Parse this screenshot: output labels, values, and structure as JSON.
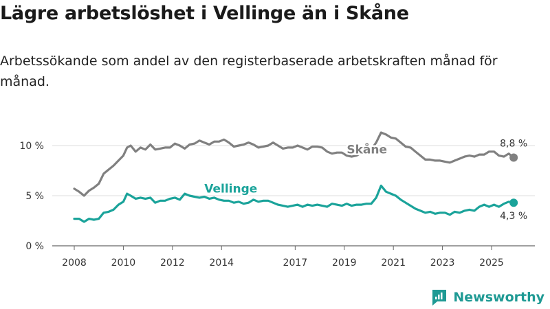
{
  "header": {
    "title": "Lägre arbetslöshet i Vellinge än i Skåne",
    "subtitle": "Arbetssökande som andel av den registerbaserade arbetskraften månad för månad."
  },
  "brand": {
    "name": "Newsworthy",
    "icon": "newsworthy-logo-icon",
    "color": "#1f9a94"
  },
  "chart_data": {
    "type": "line",
    "title": "Lägre arbetslöshet i Vellinge än i Skåne",
    "xlabel": "",
    "ylabel": "",
    "x_range": [
      2007.5,
      2026.7
    ],
    "ylim": [
      0,
      12
    ],
    "y_ticks": [
      {
        "value": 0,
        "label": "0 %"
      },
      {
        "value": 5,
        "label": "5 %"
      },
      {
        "value": 10,
        "label": "10 %"
      }
    ],
    "x_ticks": [
      {
        "value": 2008,
        "label": "2008"
      },
      {
        "value": 2010,
        "label": "2010"
      },
      {
        "value": 2012,
        "label": "2012"
      },
      {
        "value": 2014,
        "label": "2014"
      },
      {
        "value": 2017,
        "label": "2017"
      },
      {
        "value": 2019,
        "label": "2019"
      },
      {
        "value": 2021,
        "label": "2021"
      },
      {
        "value": 2023,
        "label": "2023"
      },
      {
        "value": 2025,
        "label": "2025"
      }
    ],
    "grid": true,
    "series": [
      {
        "name": "Skåne",
        "color": "#808080",
        "end_label": "8,8 %",
        "points": [
          [
            2008.0,
            5.7
          ],
          [
            2008.2,
            5.4
          ],
          [
            2008.4,
            5.0
          ],
          [
            2008.6,
            5.5
          ],
          [
            2008.8,
            5.8
          ],
          [
            2009.0,
            6.2
          ],
          [
            2009.2,
            7.2
          ],
          [
            2009.4,
            7.6
          ],
          [
            2009.6,
            8.0
          ],
          [
            2009.8,
            8.5
          ],
          [
            2010.0,
            9.0
          ],
          [
            2010.15,
            9.8
          ],
          [
            2010.3,
            10.0
          ],
          [
            2010.5,
            9.4
          ],
          [
            2010.7,
            9.8
          ],
          [
            2010.9,
            9.6
          ],
          [
            2011.1,
            10.1
          ],
          [
            2011.3,
            9.6
          ],
          [
            2011.5,
            9.7
          ],
          [
            2011.7,
            9.8
          ],
          [
            2011.9,
            9.8
          ],
          [
            2012.1,
            10.2
          ],
          [
            2012.3,
            10.0
          ],
          [
            2012.5,
            9.7
          ],
          [
            2012.7,
            10.1
          ],
          [
            2012.9,
            10.2
          ],
          [
            2013.1,
            10.5
          ],
          [
            2013.3,
            10.3
          ],
          [
            2013.5,
            10.1
          ],
          [
            2013.7,
            10.4
          ],
          [
            2013.9,
            10.4
          ],
          [
            2014.1,
            10.6
          ],
          [
            2014.3,
            10.3
          ],
          [
            2014.5,
            9.9
          ],
          [
            2014.7,
            10.0
          ],
          [
            2014.9,
            10.1
          ],
          [
            2015.1,
            10.3
          ],
          [
            2015.3,
            10.1
          ],
          [
            2015.5,
            9.8
          ],
          [
            2015.7,
            9.9
          ],
          [
            2015.9,
            10.0
          ],
          [
            2016.1,
            10.3
          ],
          [
            2016.3,
            10.0
          ],
          [
            2016.5,
            9.7
          ],
          [
            2016.7,
            9.8
          ],
          [
            2016.9,
            9.8
          ],
          [
            2017.1,
            10.0
          ],
          [
            2017.3,
            9.8
          ],
          [
            2017.5,
            9.6
          ],
          [
            2017.7,
            9.9
          ],
          [
            2017.9,
            9.9
          ],
          [
            2018.1,
            9.8
          ],
          [
            2018.3,
            9.4
          ],
          [
            2018.5,
            9.2
          ],
          [
            2018.7,
            9.3
          ],
          [
            2018.9,
            9.3
          ],
          [
            2019.1,
            9.0
          ],
          [
            2019.3,
            8.9
          ],
          [
            2019.5,
            9.0
          ],
          [
            2019.7,
            9.3
          ],
          [
            2019.9,
            9.4
          ],
          [
            2020.1,
            9.6
          ],
          [
            2020.3,
            10.3
          ],
          [
            2020.5,
            11.3
          ],
          [
            2020.7,
            11.1
          ],
          [
            2020.9,
            10.8
          ],
          [
            2021.1,
            10.7
          ],
          [
            2021.3,
            10.3
          ],
          [
            2021.5,
            9.9
          ],
          [
            2021.7,
            9.8
          ],
          [
            2021.9,
            9.4
          ],
          [
            2022.1,
            9.0
          ],
          [
            2022.3,
            8.6
          ],
          [
            2022.5,
            8.6
          ],
          [
            2022.7,
            8.5
          ],
          [
            2022.9,
            8.5
          ],
          [
            2023.1,
            8.4
          ],
          [
            2023.3,
            8.3
          ],
          [
            2023.5,
            8.5
          ],
          [
            2023.7,
            8.7
          ],
          [
            2023.9,
            8.9
          ],
          [
            2024.1,
            9.0
          ],
          [
            2024.3,
            8.9
          ],
          [
            2024.5,
            9.1
          ],
          [
            2024.7,
            9.1
          ],
          [
            2024.9,
            9.4
          ],
          [
            2025.1,
            9.4
          ],
          [
            2025.3,
            9.0
          ],
          [
            2025.5,
            8.9
          ],
          [
            2025.7,
            9.2
          ],
          [
            2025.9,
            8.8
          ]
        ]
      },
      {
        "name": "Vellinge",
        "color": "#1aa39a",
        "end_label": "4,3 %",
        "points": [
          [
            2008.0,
            2.7
          ],
          [
            2008.2,
            2.7
          ],
          [
            2008.4,
            2.4
          ],
          [
            2008.6,
            2.7
          ],
          [
            2008.8,
            2.6
          ],
          [
            2009.0,
            2.7
          ],
          [
            2009.2,
            3.3
          ],
          [
            2009.4,
            3.4
          ],
          [
            2009.6,
            3.6
          ],
          [
            2009.8,
            4.1
          ],
          [
            2010.0,
            4.4
          ],
          [
            2010.15,
            5.2
          ],
          [
            2010.3,
            5.0
          ],
          [
            2010.5,
            4.7
          ],
          [
            2010.7,
            4.8
          ],
          [
            2010.9,
            4.7
          ],
          [
            2011.1,
            4.8
          ],
          [
            2011.3,
            4.3
          ],
          [
            2011.5,
            4.5
          ],
          [
            2011.7,
            4.5
          ],
          [
            2011.9,
            4.7
          ],
          [
            2012.1,
            4.8
          ],
          [
            2012.3,
            4.6
          ],
          [
            2012.5,
            5.2
          ],
          [
            2012.7,
            5.0
          ],
          [
            2012.9,
            4.9
          ],
          [
            2013.1,
            4.8
          ],
          [
            2013.3,
            4.9
          ],
          [
            2013.5,
            4.7
          ],
          [
            2013.7,
            4.8
          ],
          [
            2013.9,
            4.6
          ],
          [
            2014.1,
            4.5
          ],
          [
            2014.3,
            4.5
          ],
          [
            2014.5,
            4.3
          ],
          [
            2014.7,
            4.4
          ],
          [
            2014.9,
            4.2
          ],
          [
            2015.1,
            4.3
          ],
          [
            2015.3,
            4.6
          ],
          [
            2015.5,
            4.4
          ],
          [
            2015.7,
            4.5
          ],
          [
            2015.9,
            4.5
          ],
          [
            2016.1,
            4.3
          ],
          [
            2016.3,
            4.1
          ],
          [
            2016.5,
            4.0
          ],
          [
            2016.7,
            3.9
          ],
          [
            2016.9,
            4.0
          ],
          [
            2017.1,
            4.1
          ],
          [
            2017.3,
            3.9
          ],
          [
            2017.5,
            4.1
          ],
          [
            2017.7,
            4.0
          ],
          [
            2017.9,
            4.1
          ],
          [
            2018.1,
            4.0
          ],
          [
            2018.3,
            3.9
          ],
          [
            2018.5,
            4.2
          ],
          [
            2018.7,
            4.1
          ],
          [
            2018.9,
            4.0
          ],
          [
            2019.1,
            4.2
          ],
          [
            2019.3,
            4.0
          ],
          [
            2019.5,
            4.1
          ],
          [
            2019.7,
            4.1
          ],
          [
            2019.9,
            4.2
          ],
          [
            2020.1,
            4.2
          ],
          [
            2020.3,
            4.8
          ],
          [
            2020.5,
            6.0
          ],
          [
            2020.7,
            5.4
          ],
          [
            2020.9,
            5.2
          ],
          [
            2021.1,
            5.0
          ],
          [
            2021.3,
            4.6
          ],
          [
            2021.5,
            4.3
          ],
          [
            2021.7,
            4.0
          ],
          [
            2021.9,
            3.7
          ],
          [
            2022.1,
            3.5
          ],
          [
            2022.3,
            3.3
          ],
          [
            2022.5,
            3.4
          ],
          [
            2022.7,
            3.2
          ],
          [
            2022.9,
            3.3
          ],
          [
            2023.1,
            3.3
          ],
          [
            2023.3,
            3.1
          ],
          [
            2023.5,
            3.4
          ],
          [
            2023.7,
            3.3
          ],
          [
            2023.9,
            3.5
          ],
          [
            2024.1,
            3.6
          ],
          [
            2024.3,
            3.5
          ],
          [
            2024.5,
            3.9
          ],
          [
            2024.7,
            4.1
          ],
          [
            2024.9,
            3.9
          ],
          [
            2025.1,
            4.1
          ],
          [
            2025.3,
            3.9
          ],
          [
            2025.5,
            4.2
          ],
          [
            2025.7,
            4.4
          ],
          [
            2025.9,
            4.3
          ]
        ]
      }
    ],
    "annotations": [
      {
        "series": "Skåne",
        "text": "Skåne",
        "x": 2019.1,
        "y": 9.2
      },
      {
        "series": "Vellinge",
        "text": "Vellinge",
        "x": 2013.3,
        "y": 5.3
      }
    ]
  }
}
